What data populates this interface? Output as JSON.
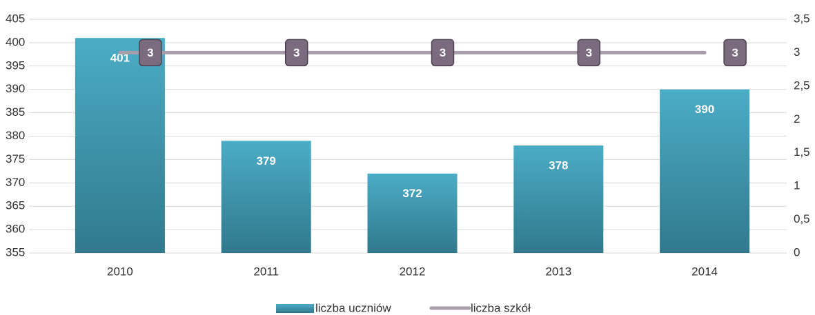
{
  "chart_data": {
    "type": "bar",
    "categories": [
      "2010",
      "2011",
      "2012",
      "2013",
      "2014"
    ],
    "series": [
      {
        "name": "liczba uczniów",
        "type": "bar",
        "color": "#4bacc6",
        "values": [
          401,
          379,
          372,
          378,
          390
        ]
      },
      {
        "name": "liczba szkół",
        "type": "line",
        "axis": "y2",
        "color": "#a99cab",
        "values": [
          3,
          3,
          3,
          3,
          3
        ]
      }
    ],
    "ylim": [
      355,
      405
    ],
    "yticks": [
      355,
      360,
      365,
      370,
      375,
      380,
      385,
      390,
      395,
      400,
      405
    ],
    "y2lim": [
      0,
      3.5
    ],
    "y2ticks": [
      0,
      {
        "value": 0.5,
        "label": "0,5"
      },
      1,
      {
        "value": 1.5,
        "label": "1,5"
      },
      2,
      {
        "value": 2.5,
        "label": "2,5"
      },
      3,
      {
        "value": 3.5,
        "label": "3,5"
      }
    ],
    "grid": true,
    "legend": "bottom"
  }
}
